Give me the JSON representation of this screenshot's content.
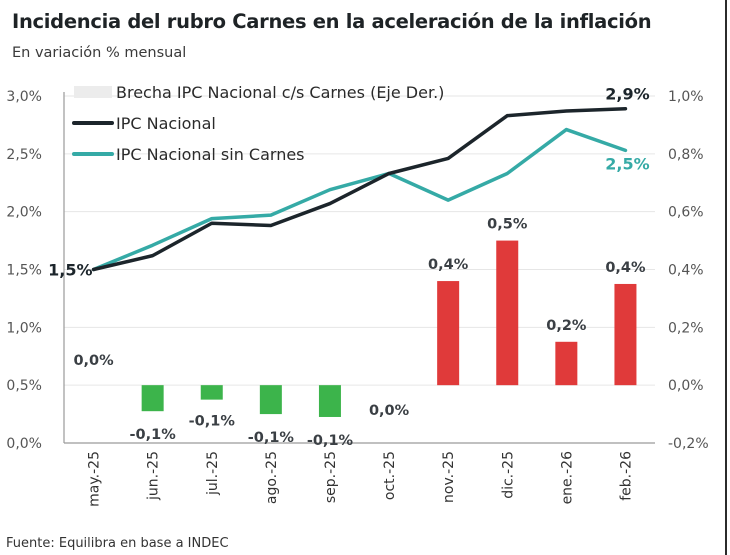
{
  "header": {
    "title": "Incidencia del rubro Carnes en la aceleración de la inflación",
    "subtitle": "En variación % mensual"
  },
  "footer": {
    "source": "Fuente: Equilibra en base a INDEC"
  },
  "colors": {
    "ipc_nacional": "#1c252b",
    "ipc_sin_carnes": "#35aaa6",
    "bar_positive": "#e03a3a",
    "bar_negative": "#3cb44b",
    "legend_brecha": "#ececec",
    "grid": "#e6e6e6",
    "axis": "#9a9a9a"
  },
  "chart_data": {
    "type": "line",
    "title": "Incidencia del rubro Carnes en la aceleración de la inflación",
    "subtitle": "En variación % mensual",
    "categories": [
      "may.-25",
      "jun.-25",
      "jul.-25",
      "ago.-25",
      "sep.-25",
      "oct.-25",
      "nov.-25",
      "dic.-25",
      "ene.-26",
      "feb.-26"
    ],
    "left_axis": {
      "ylim": [
        0.0,
        3.0
      ],
      "ticks": [
        0.0,
        0.5,
        1.0,
        1.5,
        2.0,
        2.5,
        3.0
      ],
      "tick_labels": [
        "0,0%",
        "0,5%",
        "1,0%",
        "1,5%",
        "2,0%",
        "2,5%",
        "3,0%"
      ]
    },
    "right_axis": {
      "ylim": [
        -0.2,
        1.0
      ],
      "ticks": [
        -0.2,
        0.0,
        0.2,
        0.4,
        0.6,
        0.8,
        1.0
      ],
      "tick_labels": [
        "-0,2%",
        "0,0%",
        "0,2%",
        "0,4%",
        "0,6%",
        "0,8%",
        "1,0%"
      ]
    },
    "grid": true,
    "legend_position": "top-left",
    "series": [
      {
        "name": "Brecha IPC Nacional c/s Carnes (Eje Der.)",
        "type": "bar",
        "axis": "right",
        "values": [
          0.0,
          -0.09,
          -0.05,
          -0.1,
          -0.11,
          0.0,
          0.36,
          0.5,
          0.15,
          0.35
        ],
        "data_labels": [
          "0,0%",
          "-0,1%",
          "-0,1%",
          "-0,1%",
          "-0,1%",
          "0,0%",
          "0,4%",
          "0,5%",
          "0,2%",
          "0,4%"
        ]
      },
      {
        "name": "IPC Nacional",
        "type": "line",
        "axis": "left",
        "values": [
          1.5,
          1.62,
          1.9,
          1.88,
          2.07,
          2.33,
          2.46,
          2.83,
          2.87,
          2.89
        ],
        "start_label": "1,5%",
        "end_label": "2,9%"
      },
      {
        "name": "IPC Nacional sin Carnes",
        "type": "line",
        "axis": "left",
        "values": [
          1.5,
          1.71,
          1.94,
          1.97,
          2.19,
          2.33,
          2.1,
          2.33,
          2.71,
          2.53
        ],
        "end_label": "2,5%"
      }
    ]
  }
}
